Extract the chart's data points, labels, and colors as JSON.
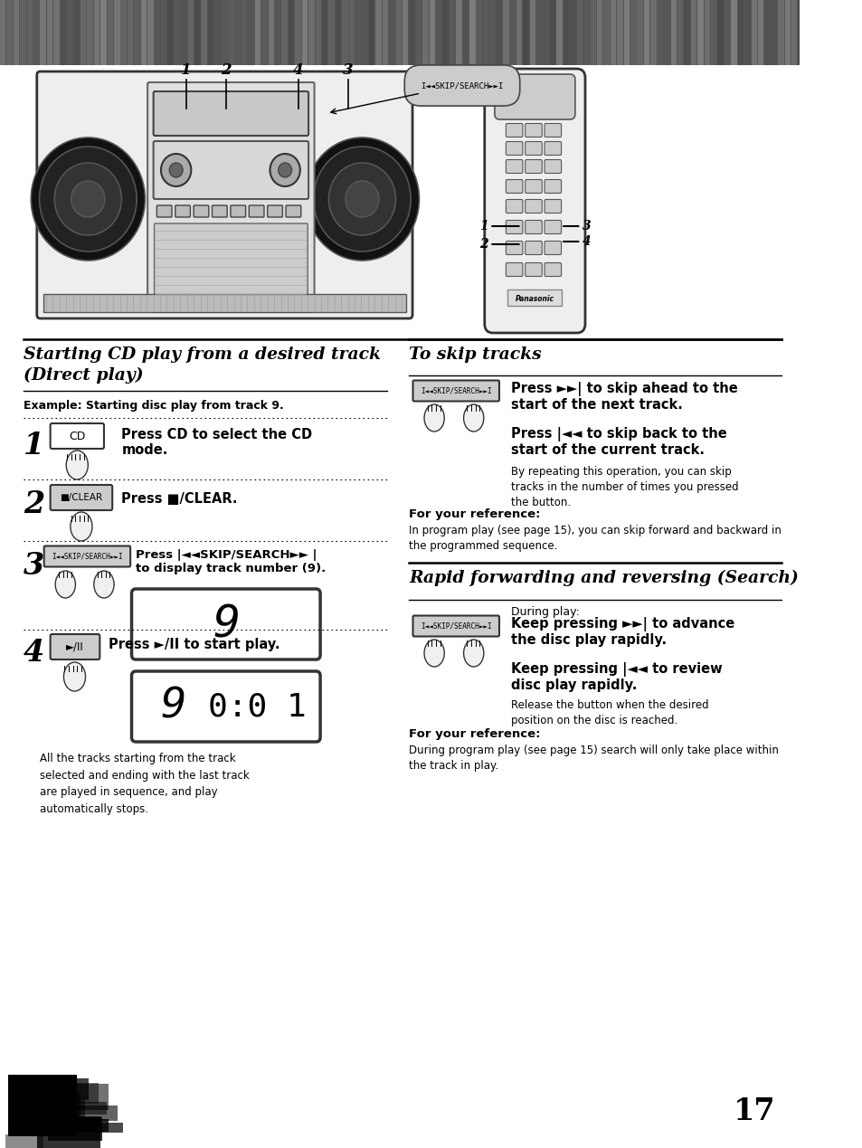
{
  "bg_color": "#ffffff",
  "header_bg": "#888888",
  "page_number": "17",
  "section1_title": "Starting CD play from a desired track\n(Direct play)",
  "section2_title": "To skip tracks",
  "section3_title": "Rapid forwarding and reversing (Search)",
  "example_text": "Example: Starting disc play from track 9.",
  "step1_text": "Press CD to select the CD\nmode.",
  "step2_text": "Press /CLEAR.",
  "step3_text": "Press |<<SKIP/SEARCH>>|\nto display track number (9).",
  "step4_text": "Press >/II to start play.",
  "step4_note": "All the tracks starting from the track\nselected and ending with the last track\nare played in sequence, and play\nautomatically stops.",
  "skip_desc1_bold": "Press >>| to skip ahead to the\nstart of the next track.",
  "skip_desc2_bold": "Press |<< to skip back to the\nstart of the current track.",
  "skip_desc2_note": "By repeating this operation, you can skip\ntracks in the number of times you pressed\nthe button.",
  "skip_ref_title": "For your reference:",
  "skip_ref_text": "In program play (see page 15), you can skip forward and backward in\nthe programmed sequence.",
  "search_during": "During play:",
  "search_desc1_bold": "Keep pressing >>| to advance\nthe disc play rapidly.",
  "search_desc2_bold": "Keep pressing |<< to review\ndisc play rapidly.",
  "search_desc2_note": "Release the button when the desired\nposition on the disc is reached.",
  "search_ref_title": "For your reference:",
  "search_ref_text": "During program play (see page 15) search will only take place within\nthe track in play."
}
